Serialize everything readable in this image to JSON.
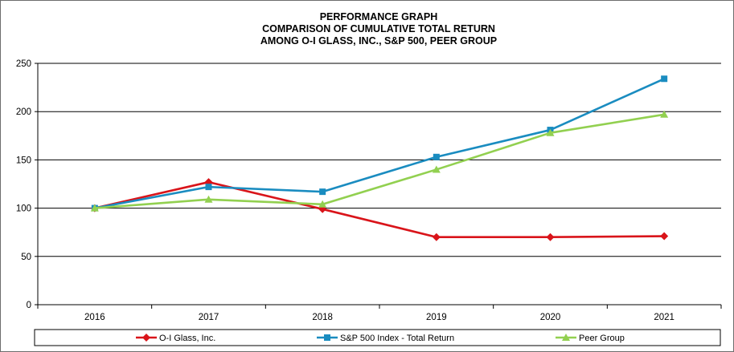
{
  "chart_data": {
    "type": "line",
    "title": [
      "PERFORMANCE GRAPH",
      "COMPARISON OF CUMULATIVE TOTAL RETURN",
      "AMONG O-I GLASS, INC., S&P 500, PEER GROUP"
    ],
    "categories": [
      "2016",
      "2017",
      "2018",
      "2019",
      "2020",
      "2021"
    ],
    "ylim": [
      0,
      250
    ],
    "yticks": [
      0,
      50,
      100,
      150,
      200,
      250
    ],
    "grid": true,
    "legend_position": "bottom",
    "series": [
      {
        "name": "O-I Glass, Inc.",
        "values": [
          100,
          127,
          99,
          70,
          70,
          71
        ],
        "color": "#d9141a",
        "marker": "diamond"
      },
      {
        "name": "S&P 500 Index - Total Return",
        "values": [
          100,
          122,
          117,
          153,
          181,
          234
        ],
        "color": "#1a8cc0",
        "marker": "square"
      },
      {
        "name": "Peer Group",
        "values": [
          100,
          109,
          104,
          140,
          178,
          197
        ],
        "color": "#92d050",
        "marker": "triangle"
      }
    ]
  }
}
